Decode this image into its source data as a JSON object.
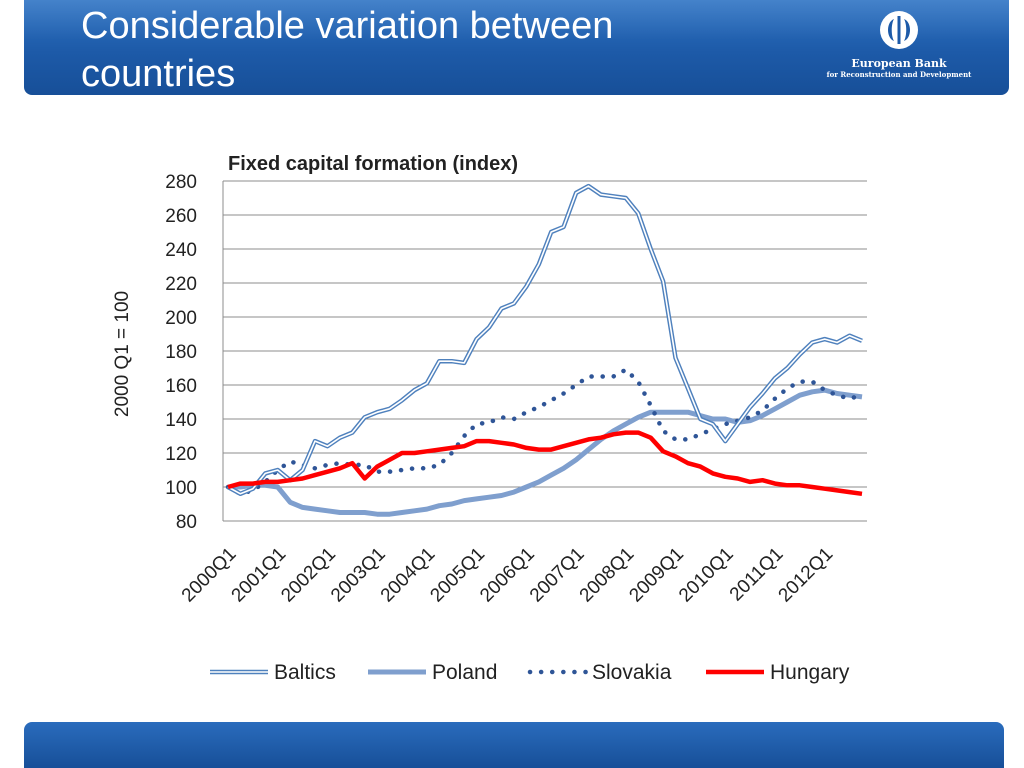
{
  "slide": {
    "title": "Considerable variation between\ncountries",
    "logo_name": "European Bank",
    "logo_sub": "for Reconstruction and Development",
    "colors": {
      "header": "#1d5aa8",
      "baltics": "#4f81bd",
      "poland": "#7f9fce",
      "slovakia": "#2f5597",
      "hungary": "#ff0000"
    }
  },
  "chart_data": {
    "type": "line",
    "title": "Fixed capital formation (index)",
    "ylabel": "2000 Q1 = 100",
    "xlabel": "",
    "ylim": [
      80,
      280
    ],
    "yticks": [
      80,
      100,
      120,
      140,
      160,
      180,
      200,
      220,
      240,
      260,
      280
    ],
    "grid": true,
    "legend": "bottom",
    "x_tick_labels": [
      "2000Q1",
      "2001Q1",
      "2002Q1",
      "2003Q1",
      "2004Q1",
      "2005Q1",
      "2006Q1",
      "2007Q1",
      "2008Q1",
      "2009Q1",
      "2010Q1",
      "2011Q1",
      "2012Q1"
    ],
    "n_quarters": 52,
    "series": [
      {
        "name": "Baltics",
        "style": "double",
        "values": [
          100,
          96,
          99,
          108,
          110,
          104,
          110,
          127,
          124,
          129,
          132,
          141,
          144,
          146,
          151,
          157,
          161,
          174,
          174,
          173,
          187,
          194,
          205,
          208,
          218,
          231,
          250,
          253,
          273,
          277,
          272,
          271,
          270,
          261,
          240,
          221,
          176,
          158,
          140,
          137,
          127,
          137,
          147,
          155,
          164,
          170,
          178,
          185,
          187,
          185,
          189,
          186
        ]
      },
      {
        "name": "Poland",
        "style": "thick",
        "values": [
          100,
          100,
          101,
          101,
          100,
          91,
          88,
          87,
          86,
          85,
          85,
          85,
          84,
          84,
          85,
          86,
          87,
          89,
          90,
          92,
          93,
          94,
          95,
          97,
          100,
          103,
          107,
          111,
          116,
          122,
          128,
          133,
          137,
          141,
          144,
          144,
          144,
          144,
          142,
          140,
          140,
          138,
          139,
          142,
          146,
          150,
          154,
          156,
          157,
          155,
          154,
          153
        ]
      },
      {
        "name": "Slovakia",
        "style": "dotted",
        "values": [
          100,
          96,
          98,
          103,
          110,
          115,
          113,
          111,
          113,
          114,
          113,
          113,
          109,
          109,
          110,
          111,
          111,
          113,
          120,
          130,
          137,
          138,
          141,
          140,
          144,
          147,
          151,
          155,
          160,
          165,
          165,
          165,
          169,
          162,
          148,
          133,
          128,
          128,
          131,
          134,
          137,
          139,
          141,
          145,
          152,
          158,
          162,
          162,
          157,
          154,
          152,
          154
        ]
      },
      {
        "name": "Hungary",
        "style": "red",
        "values": [
          100,
          102,
          102,
          103,
          103,
          104,
          105,
          107,
          109,
          111,
          114,
          105,
          112,
          116,
          120,
          120,
          121,
          122,
          123,
          124,
          127,
          127,
          126,
          125,
          123,
          122,
          122,
          124,
          126,
          128,
          129,
          131,
          132,
          132,
          129,
          121,
          118,
          114,
          112,
          108,
          106,
          105,
          103,
          104,
          102,
          101,
          101,
          100,
          99,
          98,
          97,
          96
        ]
      }
    ]
  }
}
